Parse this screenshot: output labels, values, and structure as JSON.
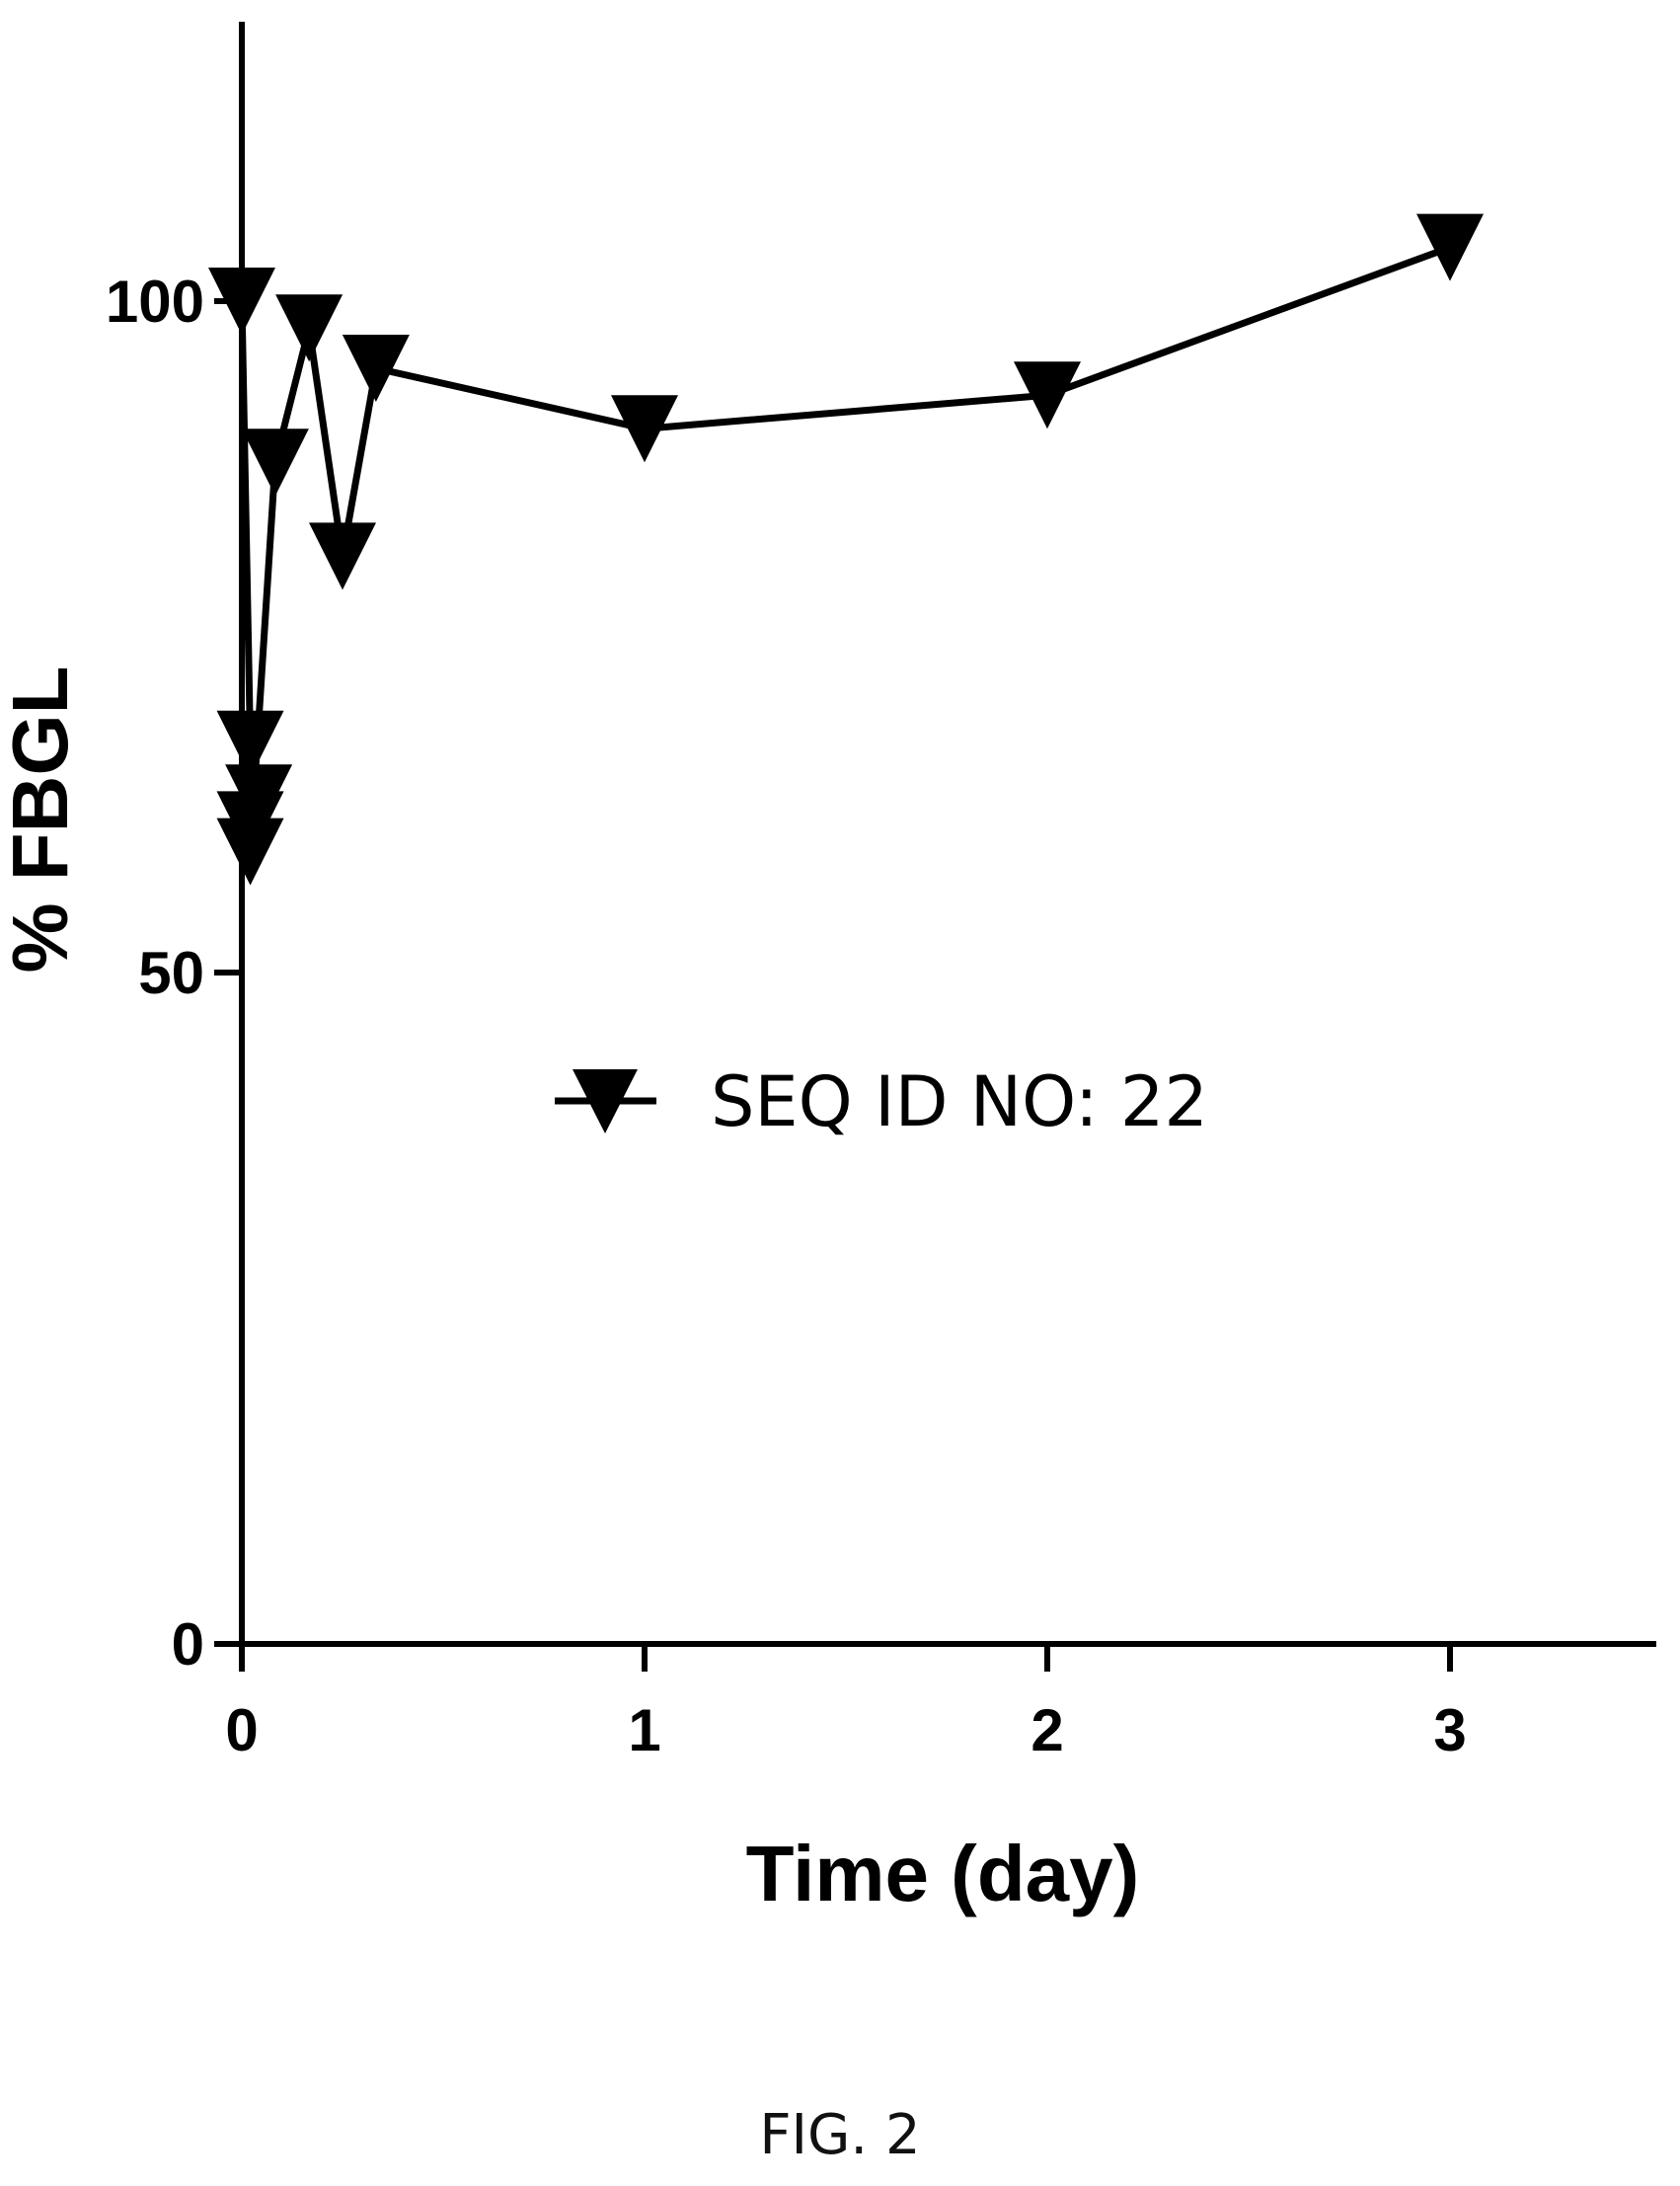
{
  "chart_data": {
    "type": "line",
    "title": "",
    "xlabel": "Time (day)",
    "ylabel": "% FBGL",
    "xlim": [
      0,
      3.5
    ],
    "ylim": [
      0,
      120
    ],
    "x_ticks": [
      0,
      1,
      2,
      3
    ],
    "y_ticks": [
      0,
      50,
      100
    ],
    "grid": false,
    "legend_position": "center",
    "series": [
      {
        "name": "SEQ ID NO: 22",
        "marker": "inverted-triangle",
        "color": "#000000",
        "points": [
          {
            "x": 0,
            "y": 100
          },
          {
            "x": 0.021,
            "y": 67
          },
          {
            "x": 0.042,
            "y": 63
          },
          {
            "x": 0.021,
            "y": 61
          },
          {
            "x": 0.021,
            "y": 59
          },
          {
            "x": 0.083,
            "y": 88
          },
          {
            "x": 0.167,
            "y": 98
          },
          {
            "x": 0.25,
            "y": 81
          },
          {
            "x": 0.333,
            "y": 95
          },
          {
            "x": 1,
            "y": 90.5
          },
          {
            "x": 2,
            "y": 93
          },
          {
            "x": 3,
            "y": 104
          }
        ]
      }
    ]
  },
  "caption": "FIG. 2"
}
